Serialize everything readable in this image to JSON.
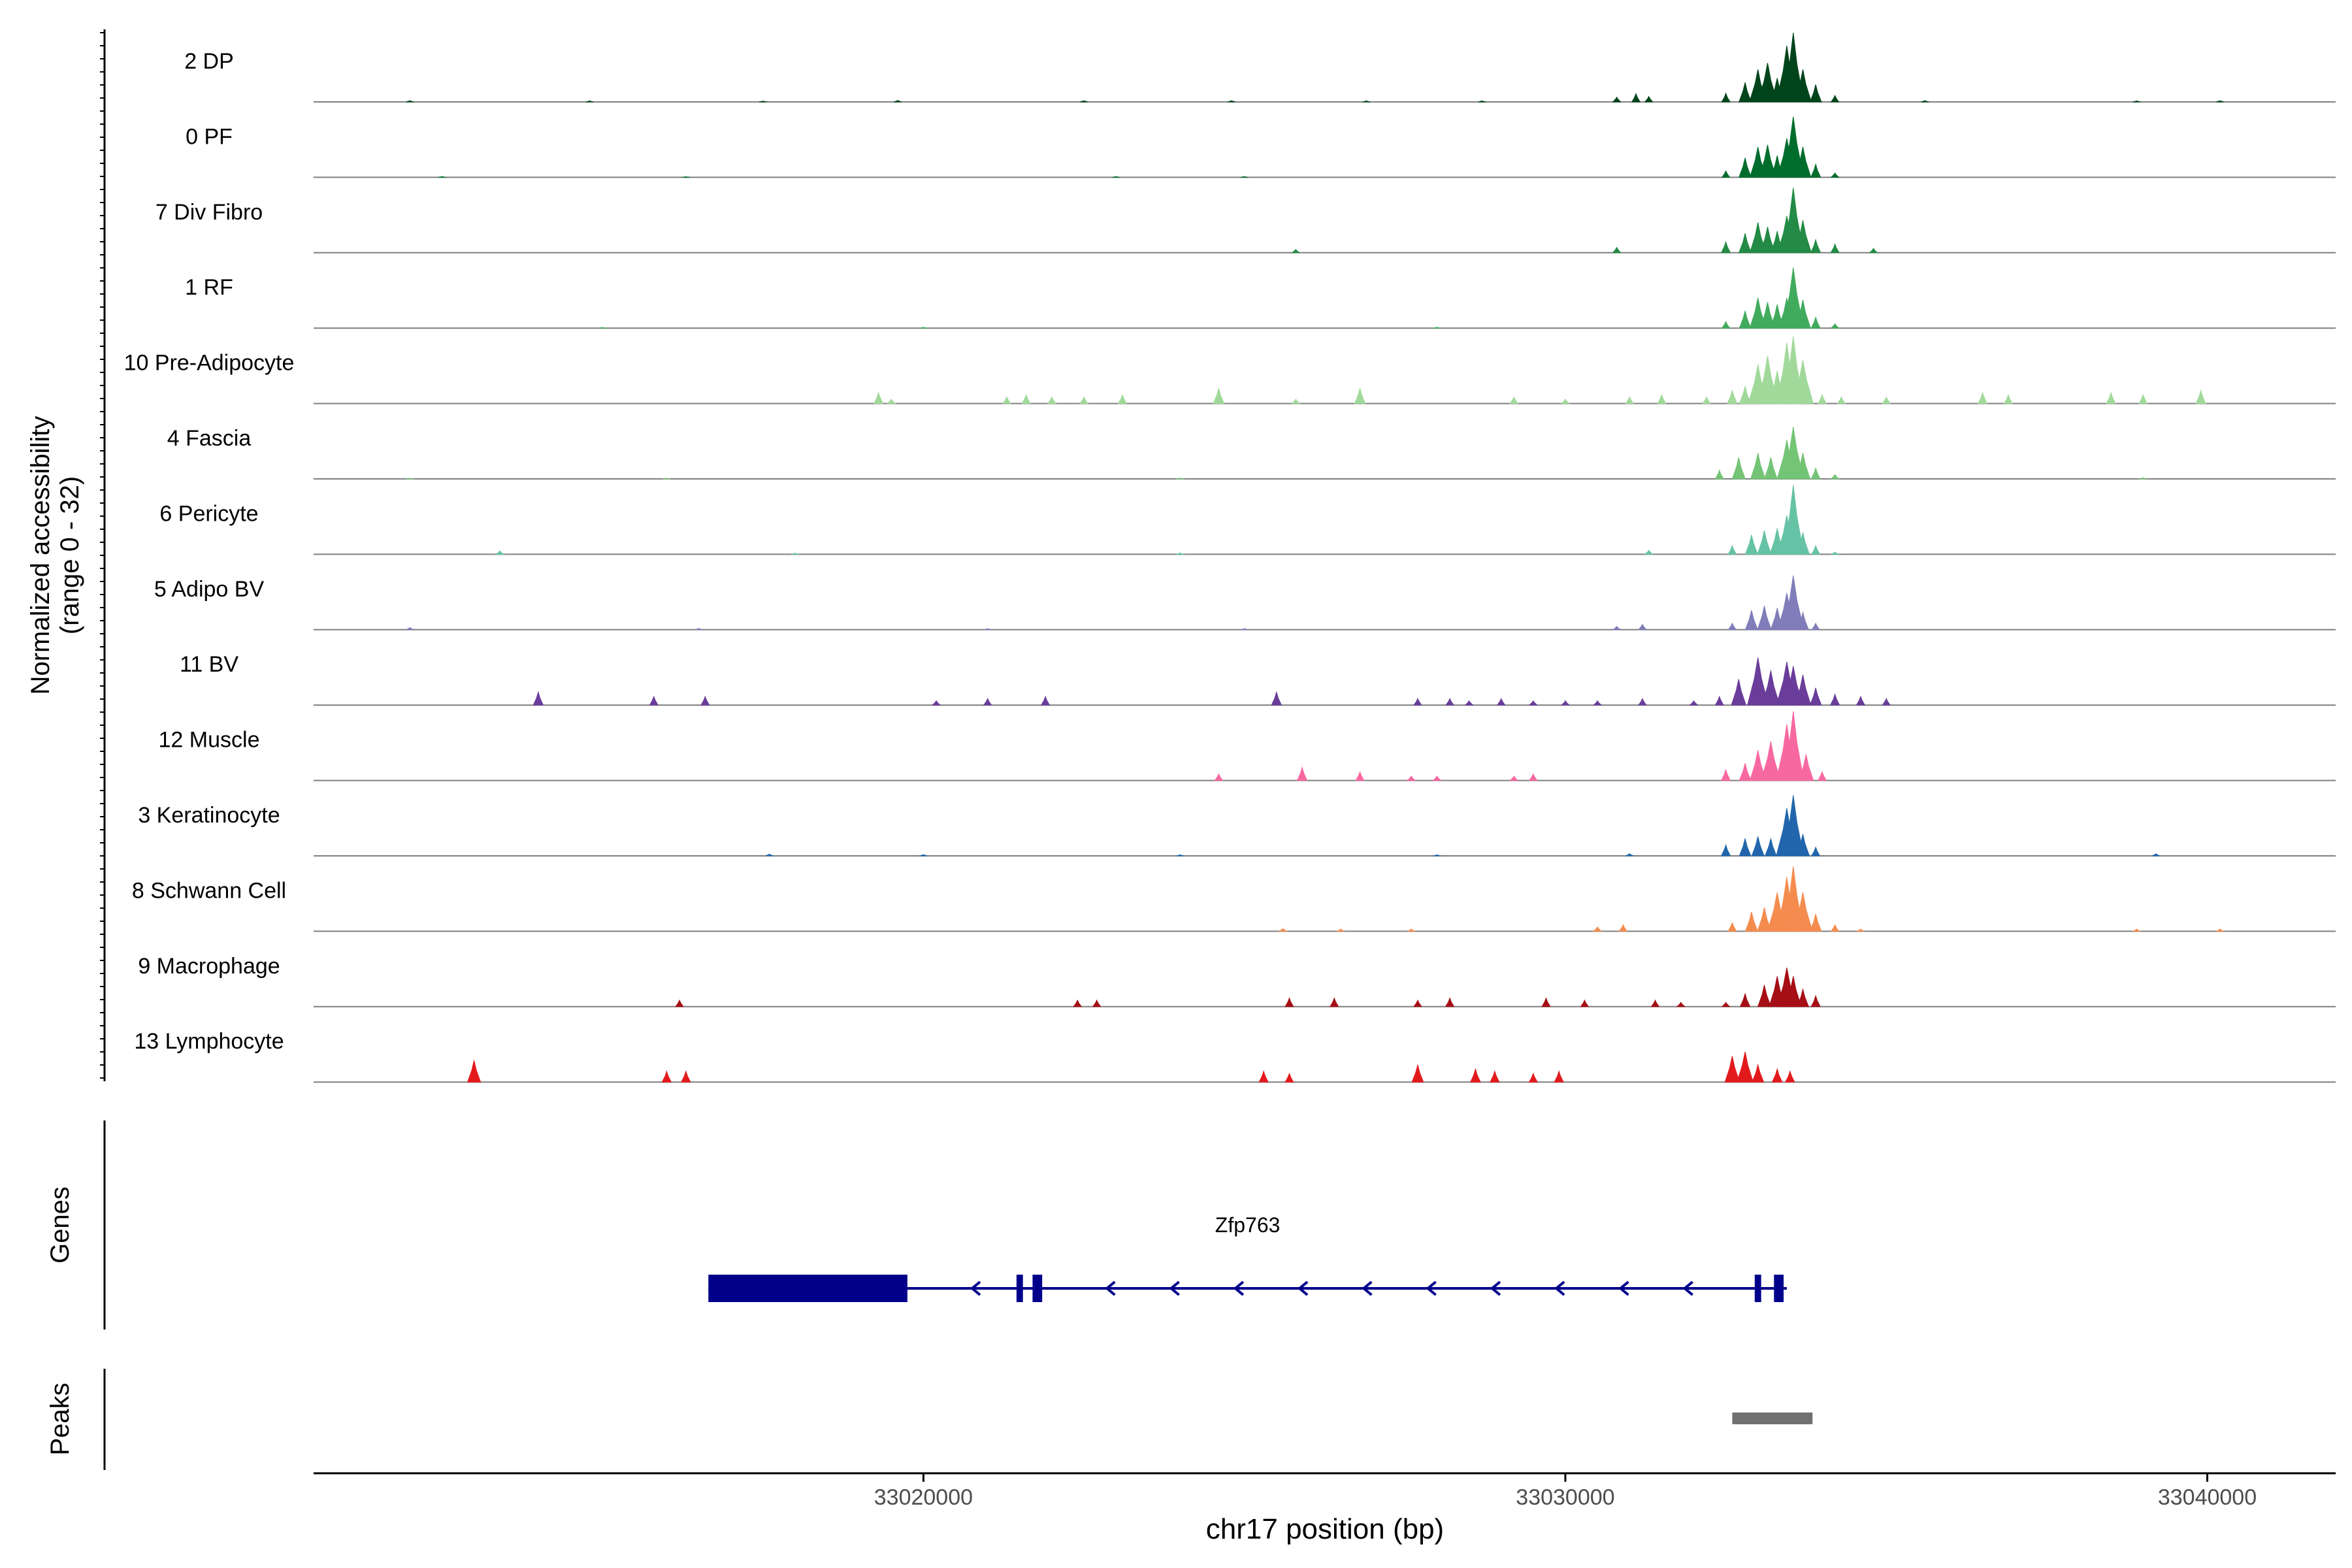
{
  "chart_data": {
    "type": "area",
    "subtype": "genome-coverage-tracks",
    "chromosome": "chr17",
    "xlim": [
      33010500,
      33042000
    ],
    "coverage_panel": {
      "ylabel_line1": "Normalized accessibility",
      "ylabel_line2": "(range 0 - 32)",
      "y_range": [
        0,
        32
      ],
      "track_height_units": 32,
      "tracks": [
        {
          "name": "2 DP",
          "color": "#00441b",
          "bins": [
            [
              33012000,
              0.6
            ],
            [
              33014800,
              0.5
            ],
            [
              33017500,
              0.4
            ],
            [
              33019600,
              0.7
            ],
            [
              33022500,
              0.6
            ],
            [
              33024800,
              0.6
            ],
            [
              33026900,
              0.5
            ],
            [
              33028700,
              0.5
            ],
            [
              33030800,
              2.2
            ],
            [
              33031100,
              3.8
            ],
            [
              33031300,
              2.5
            ],
            [
              33032500,
              4
            ],
            [
              33032800,
              9
            ],
            [
              33033000,
              15
            ],
            [
              33033150,
              18
            ],
            [
              33033300,
              11
            ],
            [
              33033450,
              26
            ],
            [
              33033550,
              32
            ],
            [
              33033700,
              15
            ],
            [
              33033900,
              8
            ],
            [
              33034200,
              3
            ],
            [
              33035600,
              0.6
            ],
            [
              33038900,
              0.5
            ],
            [
              33040200,
              0.6
            ]
          ]
        },
        {
          "name": "0 PF",
          "color": "#006d2c",
          "bins": [
            [
              33012500,
              0.4
            ],
            [
              33016300,
              0.3
            ],
            [
              33023000,
              0.4
            ],
            [
              33025000,
              0.4
            ],
            [
              33032500,
              3
            ],
            [
              33032800,
              9
            ],
            [
              33033000,
              14
            ],
            [
              33033150,
              15
            ],
            [
              33033300,
              10
            ],
            [
              33033450,
              18
            ],
            [
              33033550,
              28
            ],
            [
              33033700,
              14
            ],
            [
              33033900,
              6
            ],
            [
              33034200,
              2
            ]
          ]
        },
        {
          "name": "7 Div Fibro",
          "color": "#238b45",
          "bins": [
            [
              33025800,
              1.5
            ],
            [
              33030800,
              2.5
            ],
            [
              33032500,
              5
            ],
            [
              33032800,
              9
            ],
            [
              33033000,
              14
            ],
            [
              33033150,
              12
            ],
            [
              33033300,
              10
            ],
            [
              33033450,
              17
            ],
            [
              33033550,
              30
            ],
            [
              33033700,
              15
            ],
            [
              33033900,
              6
            ],
            [
              33034200,
              4
            ],
            [
              33034800,
              2
            ]
          ]
        },
        {
          "name": "1 RF",
          "color": "#41ab5d",
          "bins": [
            [
              33015000,
              0.3
            ],
            [
              33020000,
              0.4
            ],
            [
              33028000,
              0.4
            ],
            [
              33032500,
              3
            ],
            [
              33032800,
              8
            ],
            [
              33033000,
              14
            ],
            [
              33033150,
              12
            ],
            [
              33033300,
              11
            ],
            [
              33033450,
              14
            ],
            [
              33033550,
              28
            ],
            [
              33033700,
              13
            ],
            [
              33033900,
              5
            ],
            [
              33034200,
              2
            ]
          ]
        },
        {
          "name": "10 Pre-Adipocyte",
          "color": "#a1d99b",
          "bins": [
            [
              33019300,
              5
            ],
            [
              33019500,
              2
            ],
            [
              33021300,
              3
            ],
            [
              33021600,
              4
            ],
            [
              33022000,
              3
            ],
            [
              33022500,
              3
            ],
            [
              33023100,
              4
            ],
            [
              33024600,
              7
            ],
            [
              33025800,
              2
            ],
            [
              33026800,
              7
            ],
            [
              33029200,
              3
            ],
            [
              33030000,
              2
            ],
            [
              33031000,
              3
            ],
            [
              33031500,
              4
            ],
            [
              33032200,
              3
            ],
            [
              33032600,
              6
            ],
            [
              33032800,
              8
            ],
            [
              33033000,
              18
            ],
            [
              33033150,
              22
            ],
            [
              33033300,
              15
            ],
            [
              33033450,
              28
            ],
            [
              33033550,
              31
            ],
            [
              33033700,
              20
            ],
            [
              33034000,
              4
            ],
            [
              33034300,
              3
            ],
            [
              33035000,
              3
            ],
            [
              33036500,
              5
            ],
            [
              33036900,
              4
            ],
            [
              33038500,
              5
            ],
            [
              33039000,
              4
            ],
            [
              33039900,
              6
            ]
          ]
        },
        {
          "name": "4 Fascia",
          "color": "#74c476",
          "bins": [
            [
              33012000,
              0.3
            ],
            [
              33016000,
              0.3
            ],
            [
              33024000,
              0.4
            ],
            [
              33032400,
              4
            ],
            [
              33032700,
              10
            ],
            [
              33033000,
              12
            ],
            [
              33033200,
              10
            ],
            [
              33033450,
              18
            ],
            [
              33033550,
              24
            ],
            [
              33033700,
              12
            ],
            [
              33033900,
              5
            ],
            [
              33034200,
              2
            ],
            [
              33039000,
              0.5
            ]
          ]
        },
        {
          "name": "6 Pericyte",
          "color": "#66c2a5",
          "bins": [
            [
              33013400,
              1.5
            ],
            [
              33018000,
              0.5
            ],
            [
              33024000,
              0.6
            ],
            [
              33031300,
              1.8
            ],
            [
              33032600,
              4
            ],
            [
              33032900,
              9
            ],
            [
              33033100,
              11
            ],
            [
              33033300,
              12
            ],
            [
              33033450,
              18
            ],
            [
              33033550,
              32
            ],
            [
              33033700,
              10
            ],
            [
              33033900,
              4
            ],
            [
              33034200,
              1
            ]
          ]
        },
        {
          "name": "5 Adipo BV",
          "color": "#807dba",
          "bins": [
            [
              33012000,
              1
            ],
            [
              33016500,
              0.6
            ],
            [
              33021000,
              0.5
            ],
            [
              33025000,
              0.5
            ],
            [
              33030800,
              1.5
            ],
            [
              33031200,
              2.5
            ],
            [
              33032600,
              3
            ],
            [
              33032900,
              9
            ],
            [
              33033100,
              11
            ],
            [
              33033300,
              10
            ],
            [
              33033450,
              17
            ],
            [
              33033550,
              25
            ],
            [
              33033700,
              8
            ],
            [
              33033900,
              3
            ]
          ]
        },
        {
          "name": "11 BV",
          "color": "#6a3d9a",
          "bins": [
            [
              33014000,
              6
            ],
            [
              33015800,
              4
            ],
            [
              33016600,
              4
            ],
            [
              33020200,
              2
            ],
            [
              33021000,
              3
            ],
            [
              33021900,
              4
            ],
            [
              33025500,
              6
            ],
            [
              33027700,
              3
            ],
            [
              33028200,
              3
            ],
            [
              33028500,
              2
            ],
            [
              33029000,
              3
            ],
            [
              33029500,
              2
            ],
            [
              33030000,
              2
            ],
            [
              33030500,
              2
            ],
            [
              33031200,
              3
            ],
            [
              33032000,
              2
            ],
            [
              33032400,
              4
            ],
            [
              33032700,
              12
            ],
            [
              33033000,
              22
            ],
            [
              33033200,
              16
            ],
            [
              33033450,
              20
            ],
            [
              33033550,
              18
            ],
            [
              33033700,
              14
            ],
            [
              33033900,
              8
            ],
            [
              33034200,
              5
            ],
            [
              33034600,
              4
            ],
            [
              33035000,
              3
            ]
          ]
        },
        {
          "name": "12 Muscle",
          "color": "#f768a1",
          "bins": [
            [
              33024600,
              3
            ],
            [
              33025900,
              6
            ],
            [
              33026800,
              4
            ],
            [
              33027600,
              2
            ],
            [
              33028000,
              2
            ],
            [
              33029200,
              2
            ],
            [
              33029500,
              3
            ],
            [
              33032500,
              5
            ],
            [
              33032800,
              8
            ],
            [
              33033000,
              14
            ],
            [
              33033200,
              18
            ],
            [
              33033450,
              26
            ],
            [
              33033550,
              32
            ],
            [
              33033750,
              12
            ],
            [
              33034000,
              4
            ]
          ]
        },
        {
          "name": "3 Keratinocyte",
          "color": "#2166ac",
          "bins": [
            [
              33017600,
              0.8
            ],
            [
              33020000,
              0.6
            ],
            [
              33024000,
              0.5
            ],
            [
              33028000,
              0.5
            ],
            [
              33031000,
              1
            ],
            [
              33032500,
              5
            ],
            [
              33032800,
              8
            ],
            [
              33033000,
              9
            ],
            [
              33033200,
              8
            ],
            [
              33033450,
              22
            ],
            [
              33033550,
              28
            ],
            [
              33033700,
              10
            ],
            [
              33033900,
              4
            ],
            [
              33039200,
              1
            ]
          ]
        },
        {
          "name": "8 Schwann Cell",
          "color": "#f48c4f",
          "bins": [
            [
              33025600,
              1.2
            ],
            [
              33026500,
              1
            ],
            [
              33027600,
              1
            ],
            [
              33030500,
              2
            ],
            [
              33030900,
              3
            ],
            [
              33032600,
              4
            ],
            [
              33032900,
              9
            ],
            [
              33033100,
              11
            ],
            [
              33033300,
              18
            ],
            [
              33033450,
              25
            ],
            [
              33033550,
              30
            ],
            [
              33033700,
              18
            ],
            [
              33033900,
              8
            ],
            [
              33034200,
              3
            ],
            [
              33034600,
              1
            ],
            [
              33038900,
              1
            ],
            [
              33040200,
              1
            ]
          ]
        },
        {
          "name": "9 Macrophage",
          "color": "#a50f15",
          "bins": [
            [
              33016200,
              3
            ],
            [
              33022400,
              3
            ],
            [
              33022700,
              3
            ],
            [
              33025700,
              4
            ],
            [
              33026400,
              4
            ],
            [
              33027700,
              3
            ],
            [
              33028200,
              4
            ],
            [
              33029700,
              4
            ],
            [
              33030300,
              3
            ],
            [
              33031400,
              3
            ],
            [
              33031800,
              2
            ],
            [
              33032500,
              2
            ],
            [
              33032800,
              6
            ],
            [
              33033100,
              10
            ],
            [
              33033300,
              14
            ],
            [
              33033450,
              18
            ],
            [
              33033550,
              14
            ],
            [
              33033700,
              8
            ],
            [
              33033900,
              5
            ]
          ]
        },
        {
          "name": "13 Lymphocyte",
          "color": "#e31a1c",
          "bins": [
            [
              33013000,
              10
            ],
            [
              33016000,
              5
            ],
            [
              33016300,
              5
            ],
            [
              33025300,
              5
            ],
            [
              33025700,
              4
            ],
            [
              33027700,
              8
            ],
            [
              33028600,
              6
            ],
            [
              33028900,
              5
            ],
            [
              33029500,
              4
            ],
            [
              33029900,
              5
            ],
            [
              33032600,
              12
            ],
            [
              33032800,
              14
            ],
            [
              33033000,
              8
            ],
            [
              33033300,
              6
            ],
            [
              33033500,
              5
            ]
          ]
        }
      ]
    },
    "genes_panel": {
      "ylabel": "Genes",
      "gene": {
        "name": "Zfp763",
        "strand": "-",
        "start": 33016650,
        "end": 33033450,
        "color": "#00008b",
        "exons": [
          [
            33016650,
            33019750
          ],
          [
            33021450,
            33021550
          ],
          [
            33021700,
            33021850
          ],
          [
            33032950,
            33033050
          ],
          [
            33033250,
            33033400
          ]
        ],
        "intron_arrows": [
          33020800,
          33022900,
          33023900,
          33024900,
          33025900,
          33026900,
          33027900,
          33028900,
          33029900,
          33030900,
          33031900
        ]
      }
    },
    "peaks_panel": {
      "ylabel": "Peaks",
      "peaks": [
        [
          33032600,
          33033850
        ]
      ],
      "color": "#707070"
    },
    "x_axis": {
      "label": "chr17 position (bp)",
      "ticks": [
        33020000,
        33030000,
        33040000
      ]
    }
  }
}
